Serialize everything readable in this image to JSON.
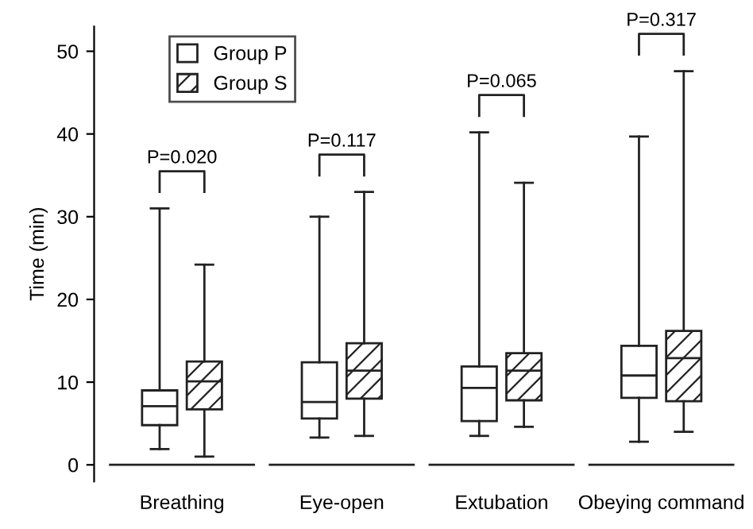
{
  "chart_data": {
    "type": "box",
    "ylabel": "Time (min)",
    "categories": [
      "Breathing",
      "Eye-open",
      "Extubation",
      "Obeying command"
    ],
    "ylim": [
      -2,
      53
    ],
    "yticks": [
      0,
      10,
      20,
      30,
      40,
      50
    ],
    "grid": false,
    "legend": "top left",
    "series": [
      {
        "name": "Group P",
        "color": "#ffffff",
        "boxes": [
          {
            "low": 1.9,
            "q1": 4.8,
            "median": 7.1,
            "q3": 9.0,
            "high": 31.0
          },
          {
            "low": 3.3,
            "q1": 5.6,
            "median": 7.6,
            "q3": 12.4,
            "high": 30.0
          },
          {
            "low": 3.5,
            "q1": 5.3,
            "median": 9.3,
            "q3": 11.9,
            "high": 40.2
          },
          {
            "low": 2.8,
            "q1": 8.1,
            "median": 10.8,
            "q3": 14.4,
            "high": 39.7
          }
        ]
      },
      {
        "name": "Group S",
        "color": "#ffffff",
        "boxes": [
          {
            "low": 1.0,
            "q1": 6.7,
            "median": 10.1,
            "q3": 12.5,
            "high": 24.2
          },
          {
            "low": 3.5,
            "q1": 8.0,
            "median": 11.4,
            "q3": 14.7,
            "high": 33.0
          },
          {
            "low": 4.6,
            "q1": 7.8,
            "median": 11.4,
            "q3": 13.5,
            "high": 34.1
          },
          {
            "low": 4.0,
            "q1": 7.7,
            "median": 12.9,
            "q3": 16.2,
            "high": 47.6
          }
        ]
      }
    ],
    "annotations": [
      "P=0.020",
      "P=0.117",
      "P=0.065",
      "P=0.317"
    ]
  }
}
